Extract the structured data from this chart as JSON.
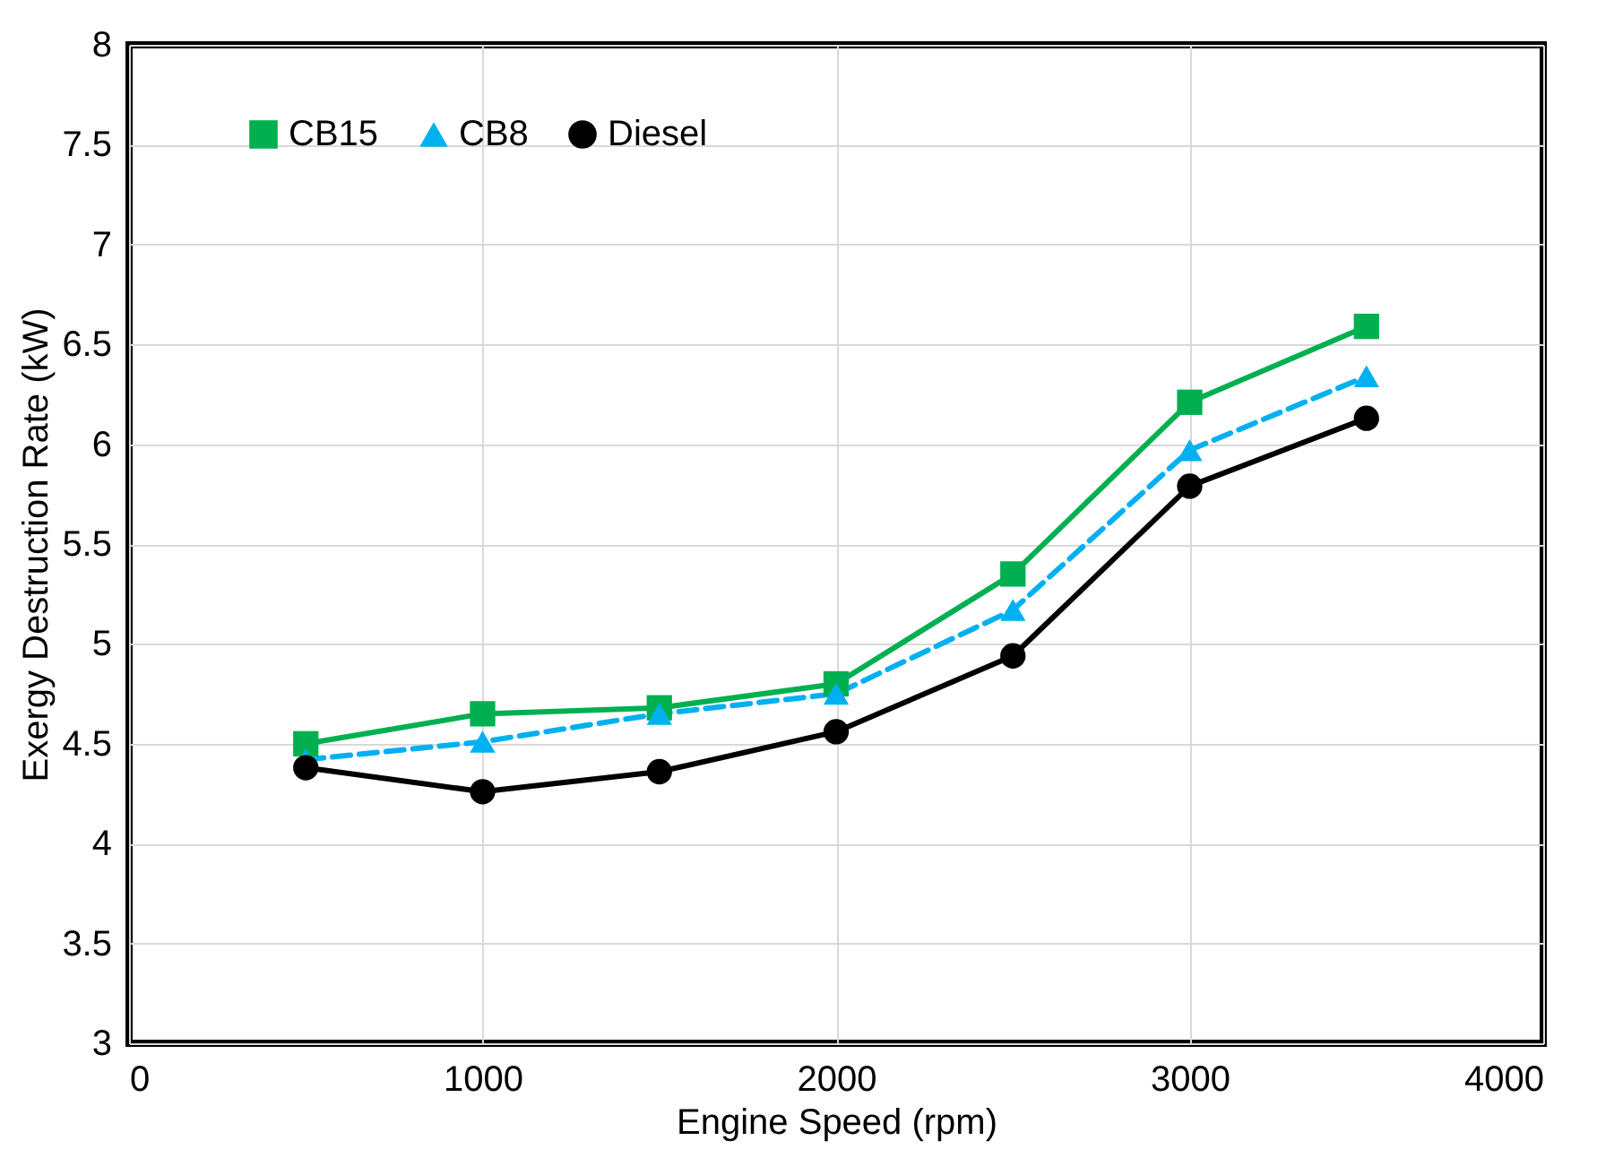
{
  "chart_data": {
    "type": "line",
    "xlabel": "Engine Speed (rpm)",
    "ylabel": "Exergy Destruction Rate  (kW)",
    "x": [
      500,
      1000,
      1500,
      2000,
      2500,
      3000,
      3500
    ],
    "series": [
      {
        "name": "CB15",
        "color": "#00b050",
        "marker": "square",
        "line_style": "solid",
        "values": [
          4.5,
          4.65,
          4.68,
          4.8,
          5.35,
          6.21,
          6.59
        ]
      },
      {
        "name": "CB8",
        "color": "#00b0f0",
        "marker": "triangle",
        "line_style": "dashed",
        "values": [
          4.42,
          4.51,
          4.65,
          4.75,
          5.17,
          5.97,
          6.34
        ]
      },
      {
        "name": "Diesel",
        "color": "#000000",
        "marker": "circle",
        "line_style": "solid",
        "values": [
          4.38,
          4.26,
          4.36,
          4.56,
          4.94,
          5.79,
          6.13
        ]
      }
    ],
    "xlim": [
      0,
      4000
    ],
    "xticks": [
      0,
      1000,
      2000,
      3000,
      4000
    ],
    "ylim": [
      3,
      8
    ],
    "yticks": [
      3,
      3.5,
      4,
      4.5,
      5,
      5.5,
      6,
      6.5,
      7,
      7.5,
      8
    ],
    "grid": true,
    "legend": "top left"
  }
}
